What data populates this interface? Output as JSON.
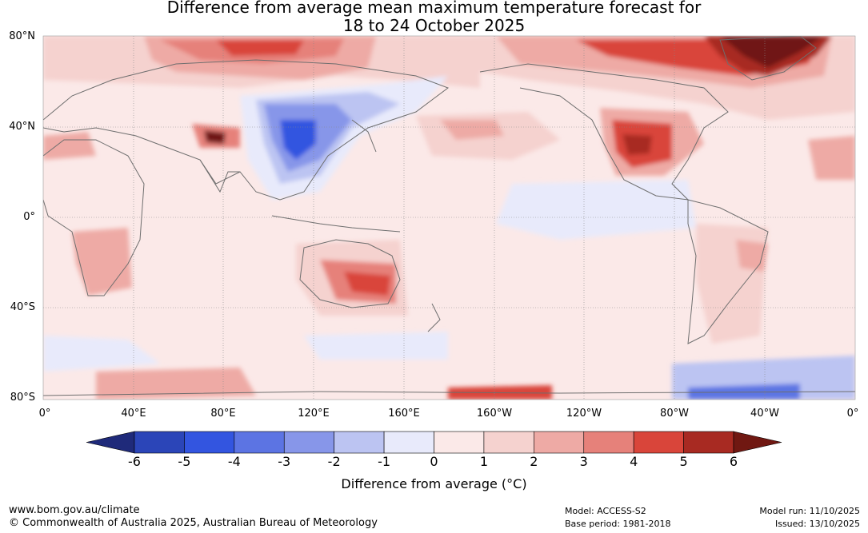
{
  "title": {
    "line1": "Difference from average mean maximum temperature forecast for",
    "line2": "18 to 24 October 2025"
  },
  "map": {
    "lat_labels": [
      "80°N",
      "40°N",
      "0°",
      "40°S",
      "80°S"
    ],
    "lon_labels": [
      "0°",
      "40°E",
      "80°E",
      "120°E",
      "160°E",
      "160°W",
      "120°W",
      "80°W",
      "40°W",
      "0°"
    ],
    "colors": {
      "land_outline": "#6e6e6e",
      "grid": "#888888"
    }
  },
  "colorbar": {
    "ticks": [
      "-6",
      "-5",
      "-4",
      "-3",
      "-2",
      "-1",
      "0",
      "1",
      "2",
      "3",
      "4",
      "5",
      "6"
    ],
    "colors": [
      "#1f2a7a",
      "#2b45b8",
      "#3355e0",
      "#5c74e3",
      "#8796e9",
      "#bcc4f2",
      "#e8eafb",
      "#fbe9e8",
      "#f5d2cf",
      "#eeaaa5",
      "#e6817a",
      "#d9453a",
      "#a82a22",
      "#701812"
    ],
    "label": "Difference from average (°C)"
  },
  "footer": {
    "url": "www.bom.gov.au/climate",
    "copyright": "© Commonwealth of Australia 2025, Australian Bureau of Meteorology",
    "model": "Model: ACCESS-S2",
    "base_period": "Base period: 1981-2018",
    "model_run": "Model run: 11/10/2025",
    "issued": "Issued: 13/10/2025"
  },
  "anomaly_patches": [
    {
      "region": "Arctic Eurasia",
      "level": 4
    },
    {
      "region": "Arctic Canada / Greenland",
      "level": 6
    },
    {
      "region": "North China / Mongolia",
      "level": -4
    },
    {
      "region": "Central Asia",
      "level": 5
    },
    {
      "region": "Central USA",
      "level": 5
    },
    {
      "region": "Eastern Australia",
      "level": 5
    },
    {
      "region": "Antarctic Atlantic sector",
      "level": -4
    }
  ]
}
